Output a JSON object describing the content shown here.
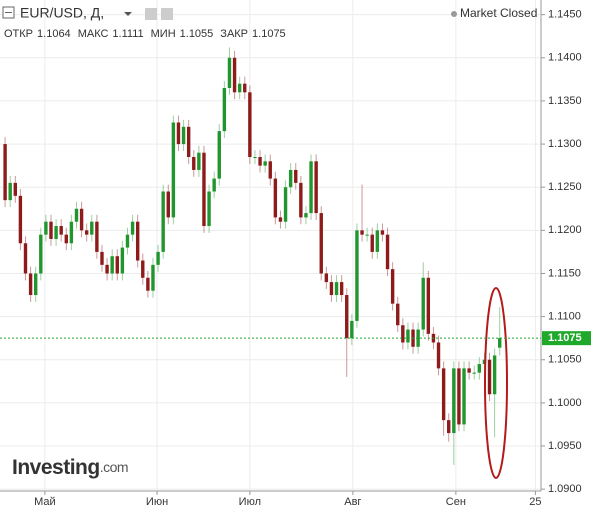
{
  "chart_data": {
    "type": "candlestick",
    "title": "EUR/USD, Д,",
    "status": "Market Closed",
    "ohlc_labels": [
      "ОТКР",
      "МАКС",
      "МИН",
      "ЗАКР"
    ],
    "watermark": {
      "name": "Investing",
      "suffix": ".com"
    },
    "up_color": "#22962e",
    "down_color": "#8e1b1b",
    "last_color": "#1fa82a",
    "grid": true,
    "ylim": [
      1.0899,
      1.1467
    ],
    "yticks": [
      {
        "value": 1.09,
        "label": "1.0900"
      },
      {
        "value": 1.095,
        "label": "1.0950"
      },
      {
        "value": 1.1,
        "label": "1.1000"
      },
      {
        "value": 1.105,
        "label": "1.1050"
      },
      {
        "value": 1.11,
        "label": "1.1100"
      },
      {
        "value": 1.115,
        "label": "1.1150"
      },
      {
        "value": 1.12,
        "label": "1.1200"
      },
      {
        "value": 1.125,
        "label": "1.1250"
      },
      {
        "value": 1.13,
        "label": "1.1300"
      },
      {
        "value": 1.135,
        "label": "1.1350"
      },
      {
        "value": 1.14,
        "label": "1.1400"
      },
      {
        "value": 1.145,
        "label": "1.1450"
      }
    ],
    "xlim": [
      -1,
      104.9
    ],
    "xticks": [
      {
        "value": 7.8,
        "label": "Май"
      },
      {
        "value": 29.8,
        "label": "Июн"
      },
      {
        "value": 48,
        "label": "Июл"
      },
      {
        "value": 68.2,
        "label": "Авг"
      },
      {
        "value": 88.4,
        "label": "Сен"
      },
      {
        "value": 104,
        "label": "25"
      }
    ],
    "ohlc": [
      [
        1.13,
        1.1308,
        1.1227,
        1.1235
      ],
      [
        1.1235,
        1.1263,
        1.1227,
        1.1255
      ],
      [
        1.1255,
        1.1263,
        1.1232,
        1.124
      ],
      [
        1.124,
        1.1248,
        1.1177,
        1.1185
      ],
      [
        1.1185,
        1.1193,
        1.1142,
        1.115
      ],
      [
        1.115,
        1.1158,
        1.1117,
        1.1125
      ],
      [
        1.1125,
        1.1158,
        1.1117,
        1.115
      ],
      [
        1.115,
        1.1203,
        1.1142,
        1.1195
      ],
      [
        1.1195,
        1.1218,
        1.1187,
        1.121
      ],
      [
        1.121,
        1.1218,
        1.1182,
        1.119
      ],
      [
        1.119,
        1.1213,
        1.1182,
        1.1205
      ],
      [
        1.1205,
        1.1213,
        1.1187,
        1.1195
      ],
      [
        1.1195,
        1.1203,
        1.1177,
        1.1185
      ],
      [
        1.1185,
        1.1218,
        1.1177,
        1.121
      ],
      [
        1.121,
        1.1233,
        1.1202,
        1.1225
      ],
      [
        1.1225,
        1.1233,
        1.1192,
        1.12
      ],
      [
        1.12,
        1.1208,
        1.1187,
        1.1195
      ],
      [
        1.1195,
        1.1218,
        1.1187,
        1.121
      ],
      [
        1.121,
        1.1218,
        1.1167,
        1.1175
      ],
      [
        1.1175,
        1.1183,
        1.1152,
        1.116
      ],
      [
        1.116,
        1.1168,
        1.1142,
        1.115
      ],
      [
        1.115,
        1.1178,
        1.1142,
        1.117
      ],
      [
        1.117,
        1.1178,
        1.1142,
        1.115
      ],
      [
        1.115,
        1.1188,
        1.1142,
        1.118
      ],
      [
        1.118,
        1.1203,
        1.1172,
        1.1195
      ],
      [
        1.1195,
        1.1218,
        1.1187,
        1.121
      ],
      [
        1.121,
        1.1218,
        1.1157,
        1.1165
      ],
      [
        1.1165,
        1.1173,
        1.1137,
        1.1145
      ],
      [
        1.1145,
        1.1153,
        1.1122,
        1.113
      ],
      [
        1.113,
        1.1168,
        1.1122,
        1.116
      ],
      [
        1.116,
        1.1183,
        1.1152,
        1.1175
      ],
      [
        1.1175,
        1.1253,
        1.1167,
        1.1245
      ],
      [
        1.1245,
        1.1253,
        1.1207,
        1.1215
      ],
      [
        1.1215,
        1.1333,
        1.1207,
        1.1325
      ],
      [
        1.1325,
        1.1333,
        1.1292,
        1.13
      ],
      [
        1.13,
        1.1328,
        1.1292,
        1.132
      ],
      [
        1.132,
        1.1328,
        1.1277,
        1.1285
      ],
      [
        1.1285,
        1.1293,
        1.1262,
        1.127
      ],
      [
        1.127,
        1.1298,
        1.1262,
        1.129
      ],
      [
        1.129,
        1.1298,
        1.1197,
        1.1205
      ],
      [
        1.1205,
        1.1253,
        1.1197,
        1.1245
      ],
      [
        1.1245,
        1.1268,
        1.1237,
        1.126
      ],
      [
        1.126,
        1.1323,
        1.1252,
        1.1315
      ],
      [
        1.1315,
        1.1373,
        1.1307,
        1.1365
      ],
      [
        1.1365,
        1.1412,
        1.1357,
        1.14
      ],
      [
        1.14,
        1.1408,
        1.1352,
        1.136
      ],
      [
        1.136,
        1.1378,
        1.1352,
        1.137
      ],
      [
        1.137,
        1.1378,
        1.1352,
        1.136
      ],
      [
        1.136,
        1.1368,
        1.1277,
        1.1285
      ],
      [
        1.1285,
        1.1293,
        1.1277,
        1.1285
      ],
      [
        1.1285,
        1.1293,
        1.1267,
        1.1275
      ],
      [
        1.1275,
        1.1288,
        1.1267,
        1.128
      ],
      [
        1.128,
        1.1288,
        1.1252,
        1.126
      ],
      [
        1.126,
        1.1268,
        1.1207,
        1.1215
      ],
      [
        1.1215,
        1.1223,
        1.1202,
        1.121
      ],
      [
        1.121,
        1.1258,
        1.1202,
        1.125
      ],
      [
        1.125,
        1.1278,
        1.1242,
        1.127
      ],
      [
        1.127,
        1.1278,
        1.1247,
        1.1255
      ],
      [
        1.1255,
        1.1263,
        1.1207,
        1.1215
      ],
      [
        1.1215,
        1.1228,
        1.1207,
        1.122
      ],
      [
        1.122,
        1.1288,
        1.1212,
        1.128
      ],
      [
        1.128,
        1.1288,
        1.1212,
        1.122
      ],
      [
        1.122,
        1.1228,
        1.1142,
        1.115
      ],
      [
        1.115,
        1.1158,
        1.1132,
        1.114
      ],
      [
        1.114,
        1.1148,
        1.1117,
        1.1125
      ],
      [
        1.1125,
        1.1148,
        1.1117,
        1.114
      ],
      [
        1.114,
        1.1148,
        1.1117,
        1.1125
      ],
      [
        1.1125,
        1.1133,
        1.103,
        1.1075
      ],
      [
        1.1075,
        1.1103,
        1.1067,
        1.1095
      ],
      [
        1.1095,
        1.1208,
        1.1087,
        1.12
      ],
      [
        1.12,
        1.1253,
        1.1187,
        1.1195
      ],
      [
        1.1195,
        1.1203,
        1.1187,
        1.1195
      ],
      [
        1.1195,
        1.1203,
        1.1167,
        1.1175
      ],
      [
        1.1175,
        1.1208,
        1.1167,
        1.12
      ],
      [
        1.12,
        1.1208,
        1.1187,
        1.1195
      ],
      [
        1.1195,
        1.1203,
        1.1147,
        1.1155
      ],
      [
        1.1155,
        1.1163,
        1.1107,
        1.1115
      ],
      [
        1.1115,
        1.1123,
        1.1082,
        1.109
      ],
      [
        1.109,
        1.1098,
        1.1062,
        1.107
      ],
      [
        1.107,
        1.1093,
        1.1062,
        1.1085
      ],
      [
        1.1085,
        1.1093,
        1.1057,
        1.1065
      ],
      [
        1.1065,
        1.1093,
        1.1057,
        1.1085
      ],
      [
        1.1085,
        1.1163,
        1.1077,
        1.1145
      ],
      [
        1.1145,
        1.1153,
        1.1072,
        1.108
      ],
      [
        1.108,
        1.1088,
        1.1062,
        1.107
      ],
      [
        1.107,
        1.1078,
        1.1032,
        1.104
      ],
      [
        1.104,
        1.1048,
        1.0962,
        1.098
      ],
      [
        1.098,
        1.0988,
        1.0955,
        1.0965
      ],
      [
        1.0965,
        1.1048,
        1.0928,
        1.104
      ],
      [
        1.104,
        1.1048,
        1.0967,
        1.0975
      ],
      [
        1.0975,
        1.1048,
        1.0967,
        1.104
      ],
      [
        1.104,
        1.1048,
        1.1027,
        1.1035
      ],
      [
        1.1035,
        1.1043,
        1.1027,
        1.1035
      ],
      [
        1.1035,
        1.1053,
        1.1027,
        1.1045
      ],
      [
        1.1045,
        1.1058,
        1.1037,
        1.105
      ],
      [
        1.105,
        1.1058,
        1.1002,
        1.101
      ],
      [
        1.101,
        1.1063,
        1.096,
        1.1055
      ],
      [
        1.1064,
        1.1111,
        1.1055,
        1.1075
      ]
    ]
  }
}
